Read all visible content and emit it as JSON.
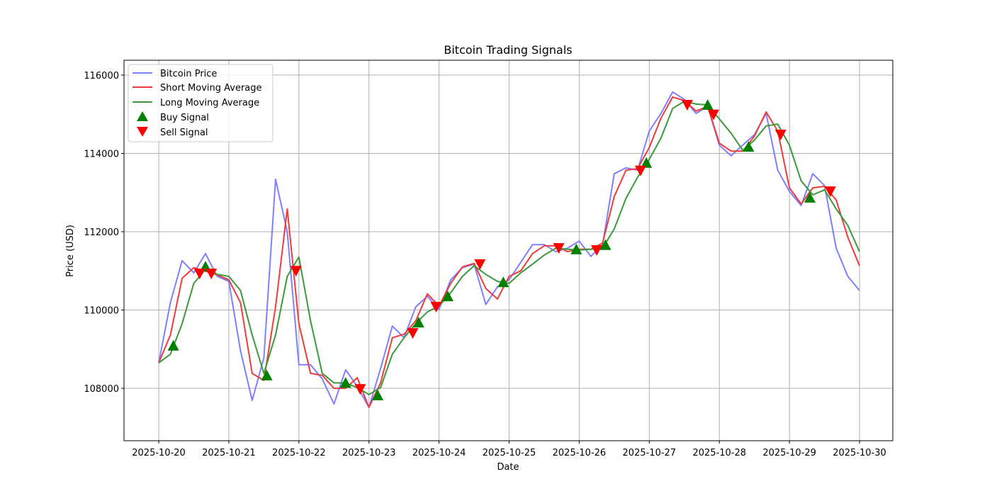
{
  "chart_data": {
    "type": "line",
    "title": "Bitcoin Trading Signals",
    "xlabel": "Date",
    "ylabel": "Price (USD)",
    "xlim": [
      "2025-10-19 12:06",
      "2025-10-30 11:24"
    ],
    "ylim": [
      106660,
      116380
    ],
    "grid": true,
    "legend_placement": "top-left",
    "x_ticks": [
      "2025-10-20",
      "2025-10-21",
      "2025-10-22",
      "2025-10-23",
      "2025-10-24",
      "2025-10-25",
      "2025-10-26",
      "2025-10-27",
      "2025-10-28",
      "2025-10-29",
      "2025-10-30"
    ],
    "y_ticks": [
      108000,
      110000,
      112000,
      114000,
      116000
    ],
    "x": [
      "2025-10-20 00:00",
      "2025-10-20 04:00",
      "2025-10-20 08:00",
      "2025-10-20 12:00",
      "2025-10-20 16:00",
      "2025-10-20 20:00",
      "2025-10-21 00:00",
      "2025-10-21 04:00",
      "2025-10-21 08:00",
      "2025-10-21 12:00",
      "2025-10-21 16:00",
      "2025-10-21 20:00",
      "2025-10-22 00:00",
      "2025-10-22 04:00",
      "2025-10-22 08:00",
      "2025-10-22 12:00",
      "2025-10-22 16:00",
      "2025-10-22 20:00",
      "2025-10-23 00:00",
      "2025-10-23 04:00",
      "2025-10-23 08:00",
      "2025-10-23 12:00",
      "2025-10-23 16:00",
      "2025-10-23 20:00",
      "2025-10-24 00:00",
      "2025-10-24 04:00",
      "2025-10-24 08:00",
      "2025-10-24 12:00",
      "2025-10-24 16:00",
      "2025-10-24 20:00",
      "2025-10-25 00:00",
      "2025-10-25 04:00",
      "2025-10-25 08:00",
      "2025-10-25 12:00",
      "2025-10-25 16:00",
      "2025-10-25 20:00",
      "2025-10-26 00:00",
      "2025-10-26 04:00",
      "2025-10-26 08:00",
      "2025-10-26 12:00",
      "2025-10-26 16:00",
      "2025-10-26 20:00",
      "2025-10-27 00:00",
      "2025-10-27 04:00",
      "2025-10-27 08:00",
      "2025-10-27 12:00",
      "2025-10-27 16:00",
      "2025-10-27 20:00",
      "2025-10-28 00:00",
      "2025-10-28 04:00",
      "2025-10-28 08:00",
      "2025-10-28 12:00",
      "2025-10-28 16:00",
      "2025-10-28 20:00",
      "2025-10-29 00:00",
      "2025-10-29 04:00",
      "2025-10-29 08:00",
      "2025-10-29 12:00",
      "2025-10-29 16:00",
      "2025-10-29 20:00",
      "2025-10-30 00:00"
    ],
    "series": [
      {
        "name": "Bitcoin Price",
        "color": "#7f7fff",
        "values": [
          108650,
          110190,
          111260,
          110950,
          111440,
          110860,
          110730,
          108960,
          107690,
          108780,
          113340,
          112000,
          108600,
          108600,
          108240,
          107600,
          108470,
          108050,
          107510,
          108510,
          109590,
          109290,
          110080,
          110350,
          110010,
          110770,
          111080,
          111170,
          110140,
          110590,
          110770,
          111220,
          111670,
          111670,
          111490,
          111580,
          111760,
          111370,
          111670,
          113480,
          113630,
          113570,
          114570,
          115020,
          115570,
          115380,
          115020,
          115200,
          114210,
          113940,
          114210,
          114480,
          115020,
          113570,
          113030,
          112670,
          113480,
          113180,
          111580,
          110860,
          110500
        ]
      },
      {
        "name": "Short Moving Average",
        "color": "#ee3b3b",
        "values": [
          108650,
          109360,
          110810,
          111080,
          110990,
          110900,
          110770,
          110190,
          108380,
          108200,
          110080,
          112580,
          109650,
          108380,
          108330,
          108000,
          108000,
          108270,
          107510,
          108140,
          109290,
          109380,
          109720,
          110410,
          110100,
          110680,
          111100,
          111190,
          110550,
          110280,
          110860,
          111000,
          111440,
          111640,
          111640,
          111490,
          111550,
          111550,
          111710,
          112900,
          113570,
          113610,
          114150,
          114900,
          115440,
          115350,
          115080,
          115200,
          114260,
          114060,
          114060,
          114440,
          115060,
          114570,
          113120,
          112710,
          113120,
          113160,
          112810,
          111860,
          111130
        ]
      },
      {
        "name": "Long Moving Average",
        "color": "#3a9a3a",
        "values": [
          108650,
          108870,
          109650,
          110680,
          111040,
          110910,
          110860,
          110500,
          109360,
          108380,
          109360,
          110860,
          111350,
          109720,
          108380,
          108140,
          108130,
          108020,
          107840,
          108020,
          108870,
          109290,
          109650,
          109950,
          110100,
          110440,
          110860,
          111130,
          110910,
          110730,
          110680,
          110950,
          111170,
          111400,
          111580,
          111550,
          111530,
          111550,
          111580,
          112070,
          112850,
          113390,
          113850,
          114390,
          115150,
          115330,
          115260,
          115240,
          114880,
          114520,
          114080,
          114340,
          114700,
          114750,
          114210,
          113300,
          112940,
          113070,
          112580,
          112160,
          111490
        ]
      }
    ],
    "buy_signals": {
      "name": "Buy Signal",
      "color": "#008000",
      "marker": "triangle-up",
      "points": [
        {
          "x": "2025-10-20 05:00",
          "y": 109090
        },
        {
          "x": "2025-10-20 16:00",
          "y": 111110
        },
        {
          "x": "2025-10-21 13:00",
          "y": 108330
        },
        {
          "x": "2025-10-22 16:00",
          "y": 108140
        },
        {
          "x": "2025-10-23 03:00",
          "y": 107820
        },
        {
          "x": "2025-10-23 17:00",
          "y": 109680
        },
        {
          "x": "2025-10-24 03:00",
          "y": 110350
        },
        {
          "x": "2025-10-24 22:00",
          "y": 110710
        },
        {
          "x": "2025-10-25 23:00",
          "y": 111550
        },
        {
          "x": "2025-10-26 09:00",
          "y": 111660
        },
        {
          "x": "2025-10-26 23:00",
          "y": 113760
        },
        {
          "x": "2025-10-27 20:00",
          "y": 115240
        },
        {
          "x": "2025-10-28 10:00",
          "y": 114170
        },
        {
          "x": "2025-10-29 07:00",
          "y": 112870
        }
      ]
    },
    "sell_signals": {
      "name": "Sell Signal",
      "color": "#ff0000",
      "marker": "triangle-down",
      "points": [
        {
          "x": "2025-10-20 14:00",
          "y": 110930
        },
        {
          "x": "2025-10-20 18:00",
          "y": 110930
        },
        {
          "x": "2025-10-21 23:00",
          "y": 111000
        },
        {
          "x": "2025-10-22 21:00",
          "y": 107980
        },
        {
          "x": "2025-10-23 15:00",
          "y": 109410
        },
        {
          "x": "2025-10-23 23:00",
          "y": 110080
        },
        {
          "x": "2025-10-24 14:00",
          "y": 111170
        },
        {
          "x": "2025-10-25 17:00",
          "y": 111580
        },
        {
          "x": "2025-10-26 06:00",
          "y": 111530
        },
        {
          "x": "2025-10-26 21:00",
          "y": 113560
        },
        {
          "x": "2025-10-27 13:00",
          "y": 115240
        },
        {
          "x": "2025-10-27 22:00",
          "y": 114990
        },
        {
          "x": "2025-10-28 21:00",
          "y": 114480
        },
        {
          "x": "2025-10-29 14:00",
          "y": 113030
        }
      ]
    }
  }
}
